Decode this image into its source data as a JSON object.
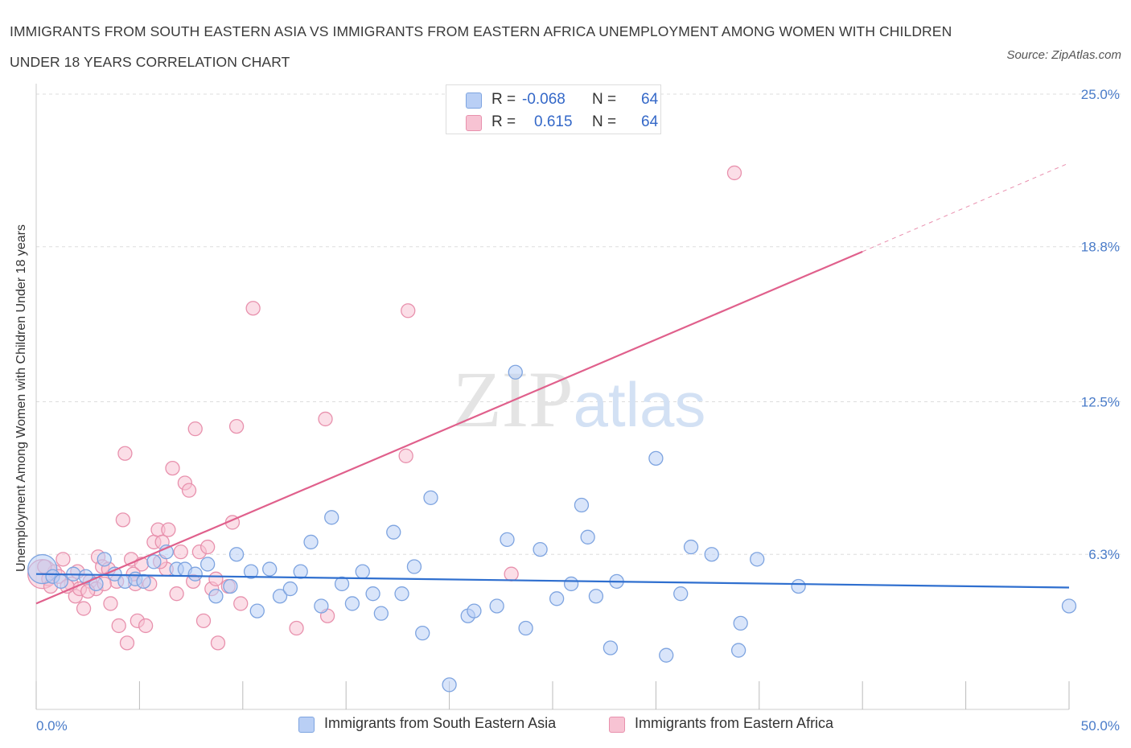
{
  "title": "IMMIGRANTS FROM SOUTH EASTERN ASIA VS IMMIGRANTS FROM EASTERN AFRICA UNEMPLOYMENT AMONG WOMEN WITH CHILDREN UNDER 18 YEARS CORRELATION CHART",
  "source": "Source: ZipAtlas.com",
  "watermark": "ZIPatlas",
  "legend": {
    "r_label": "R =",
    "n_label": "N =",
    "series1": {
      "r": "-0.068",
      "n": "64"
    },
    "series2": {
      "r": "0.615",
      "n": "64"
    }
  },
  "colors": {
    "series1_fill": "#b9cff5",
    "series1_stroke": "#7ea4e0",
    "series1_line": "#2f6fcf",
    "series2_fill": "#f7c3d3",
    "series2_stroke": "#e891ad",
    "series2_line": "#e0608c",
    "axis_text": "#4a7cc9",
    "grid": "#dddddd"
  },
  "chart_data": {
    "type": "scatter",
    "title": "IMMIGRANTS FROM SOUTH EASTERN ASIA VS IMMIGRANTS FROM EASTERN AFRICA UNEMPLOYMENT AMONG WOMEN WITH CHILDREN UNDER 18 YEARS CORRELATION CHART",
    "xlabel": "",
    "ylabel": "Unemployment Among Women with Children Under 18 years",
    "xlim": [
      0,
      50
    ],
    "ylim": [
      0,
      25
    ],
    "x_tick_labels": [
      "0.0%",
      "50.0%"
    ],
    "y_ticks": [
      6.3,
      12.5,
      18.8,
      25.0
    ],
    "y_tick_labels": [
      "6.3%",
      "12.5%",
      "18.8%",
      "25.0%"
    ],
    "grid": "horizontal dashed",
    "legend_position": "top-center and bottom",
    "series": [
      {
        "name": "Immigrants from South Eastern Asia",
        "R": -0.068,
        "N": 64,
        "trend": {
          "x": [
            0,
            50
          ],
          "y": [
            5.5,
            4.95
          ]
        },
        "points": [
          {
            "x": 0.3,
            "y": 5.7,
            "big": true
          },
          {
            "x": 0.8,
            "y": 5.4
          },
          {
            "x": 1.2,
            "y": 5.2
          },
          {
            "x": 1.8,
            "y": 5.5
          },
          {
            "x": 2.4,
            "y": 5.4
          },
          {
            "x": 2.9,
            "y": 5.1
          },
          {
            "x": 3.3,
            "y": 6.1
          },
          {
            "x": 3.8,
            "y": 5.5
          },
          {
            "x": 4.3,
            "y": 5.2
          },
          {
            "x": 4.8,
            "y": 5.3
          },
          {
            "x": 5.2,
            "y": 5.2
          },
          {
            "x": 5.7,
            "y": 6.0
          },
          {
            "x": 6.3,
            "y": 6.4
          },
          {
            "x": 6.8,
            "y": 5.7
          },
          {
            "x": 7.2,
            "y": 5.7
          },
          {
            "x": 7.7,
            "y": 5.5
          },
          {
            "x": 8.3,
            "y": 5.9
          },
          {
            "x": 8.7,
            "y": 4.6
          },
          {
            "x": 9.4,
            "y": 5.0
          },
          {
            "x": 9.7,
            "y": 6.3
          },
          {
            "x": 10.4,
            "y": 5.6
          },
          {
            "x": 10.7,
            "y": 4.0
          },
          {
            "x": 11.3,
            "y": 5.7
          },
          {
            "x": 11.8,
            "y": 4.6
          },
          {
            "x": 12.3,
            "y": 4.9
          },
          {
            "x": 12.8,
            "y": 5.6
          },
          {
            "x": 13.3,
            "y": 6.8
          },
          {
            "x": 13.8,
            "y": 4.2
          },
          {
            "x": 14.3,
            "y": 7.8
          },
          {
            "x": 14.8,
            "y": 5.1
          },
          {
            "x": 15.3,
            "y": 4.3
          },
          {
            "x": 15.8,
            "y": 5.6
          },
          {
            "x": 16.3,
            "y": 4.7
          },
          {
            "x": 16.7,
            "y": 3.9
          },
          {
            "x": 17.3,
            "y": 7.2
          },
          {
            "x": 17.7,
            "y": 4.7
          },
          {
            "x": 18.3,
            "y": 5.8
          },
          {
            "x": 18.7,
            "y": 3.1
          },
          {
            "x": 19.1,
            "y": 8.6
          },
          {
            "x": 20.0,
            "y": 1.0
          },
          {
            "x": 20.9,
            "y": 3.8
          },
          {
            "x": 21.2,
            "y": 4.0
          },
          {
            "x": 22.3,
            "y": 4.2
          },
          {
            "x": 22.8,
            "y": 6.9
          },
          {
            "x": 23.7,
            "y": 3.3
          },
          {
            "x": 23.2,
            "y": 13.7
          },
          {
            "x": 24.4,
            "y": 6.5
          },
          {
            "x": 25.2,
            "y": 4.5
          },
          {
            "x": 25.9,
            "y": 5.1
          },
          {
            "x": 26.7,
            "y": 7.0
          },
          {
            "x": 26.4,
            "y": 8.3
          },
          {
            "x": 27.1,
            "y": 4.6
          },
          {
            "x": 27.8,
            "y": 2.5
          },
          {
            "x": 28.1,
            "y": 5.2
          },
          {
            "x": 30.0,
            "y": 10.2
          },
          {
            "x": 30.5,
            "y": 2.2
          },
          {
            "x": 31.2,
            "y": 4.7
          },
          {
            "x": 31.7,
            "y": 6.6
          },
          {
            "x": 32.7,
            "y": 6.3
          },
          {
            "x": 34.0,
            "y": 2.4
          },
          {
            "x": 34.1,
            "y": 3.5
          },
          {
            "x": 34.9,
            "y": 6.1
          },
          {
            "x": 36.9,
            "y": 5.0
          },
          {
            "x": 50.0,
            "y": 4.2
          }
        ]
      },
      {
        "name": "Immigrants from Eastern Africa",
        "R": 0.615,
        "N": 64,
        "trend": {
          "x": [
            0,
            40
          ],
          "y": [
            4.3,
            18.6
          ]
        },
        "trend_dashed": {
          "x": [
            40,
            50
          ],
          "y": [
            18.6,
            22.2
          ]
        },
        "points": [
          {
            "x": 0.3,
            "y": 5.5,
            "big": true
          },
          {
            "x": 0.6,
            "y": 5.3
          },
          {
            "x": 0.9,
            "y": 5.6
          },
          {
            "x": 1.3,
            "y": 6.1
          },
          {
            "x": 1.7,
            "y": 5.1
          },
          {
            "x": 1.9,
            "y": 4.6
          },
          {
            "x": 2.1,
            "y": 4.9
          },
          {
            "x": 2.3,
            "y": 4.1
          },
          {
            "x": 2.6,
            "y": 5.2
          },
          {
            "x": 2.9,
            "y": 4.9
          },
          {
            "x": 3.0,
            "y": 6.2
          },
          {
            "x": 3.2,
            "y": 5.8
          },
          {
            "x": 3.5,
            "y": 5.7
          },
          {
            "x": 3.6,
            "y": 4.3
          },
          {
            "x": 3.9,
            "y": 5.2
          },
          {
            "x": 4.0,
            "y": 3.4
          },
          {
            "x": 4.2,
            "y": 7.7
          },
          {
            "x": 4.3,
            "y": 10.4
          },
          {
            "x": 4.4,
            "y": 2.7
          },
          {
            "x": 4.6,
            "y": 6.1
          },
          {
            "x": 4.8,
            "y": 5.1
          },
          {
            "x": 4.9,
            "y": 3.6
          },
          {
            "x": 5.1,
            "y": 5.9
          },
          {
            "x": 5.3,
            "y": 3.4
          },
          {
            "x": 5.5,
            "y": 5.1
          },
          {
            "x": 5.7,
            "y": 6.8
          },
          {
            "x": 5.9,
            "y": 7.3
          },
          {
            "x": 6.1,
            "y": 6.8
          },
          {
            "x": 6.3,
            "y": 5.7
          },
          {
            "x": 6.4,
            "y": 7.3
          },
          {
            "x": 6.6,
            "y": 9.8
          },
          {
            "x": 6.8,
            "y": 4.7
          },
          {
            "x": 7.0,
            "y": 6.4
          },
          {
            "x": 7.2,
            "y": 9.2
          },
          {
            "x": 7.4,
            "y": 8.9
          },
          {
            "x": 7.6,
            "y": 5.2
          },
          {
            "x": 7.7,
            "y": 11.4
          },
          {
            "x": 7.9,
            "y": 6.4
          },
          {
            "x": 8.1,
            "y": 3.6
          },
          {
            "x": 8.3,
            "y": 6.6
          },
          {
            "x": 8.5,
            "y": 4.9
          },
          {
            "x": 8.7,
            "y": 5.3
          },
          {
            "x": 8.8,
            "y": 2.7
          },
          {
            "x": 9.3,
            "y": 5.0
          },
          {
            "x": 9.5,
            "y": 7.6
          },
          {
            "x": 9.7,
            "y": 11.5
          },
          {
            "x": 9.9,
            "y": 4.3
          },
          {
            "x": 10.5,
            "y": 16.3
          },
          {
            "x": 12.6,
            "y": 3.3
          },
          {
            "x": 14.0,
            "y": 11.8
          },
          {
            "x": 14.1,
            "y": 3.8
          },
          {
            "x": 17.9,
            "y": 10.3
          },
          {
            "x": 18.0,
            "y": 16.2
          },
          {
            "x": 23.0,
            "y": 5.5
          },
          {
            "x": 33.8,
            "y": 21.8
          },
          {
            "x": 0.4,
            "y": 5.8
          },
          {
            "x": 0.7,
            "y": 5.0
          },
          {
            "x": 1.1,
            "y": 5.4
          },
          {
            "x": 1.5,
            "y": 5.0
          },
          {
            "x": 2.0,
            "y": 5.6
          },
          {
            "x": 2.5,
            "y": 4.8
          },
          {
            "x": 3.3,
            "y": 5.1
          },
          {
            "x": 4.7,
            "y": 5.5
          },
          {
            "x": 6.0,
            "y": 6.0
          }
        ]
      }
    ]
  },
  "bottom_legend": {
    "series1": "Immigrants from South Eastern Asia",
    "series2": "Immigrants from Eastern Africa"
  }
}
